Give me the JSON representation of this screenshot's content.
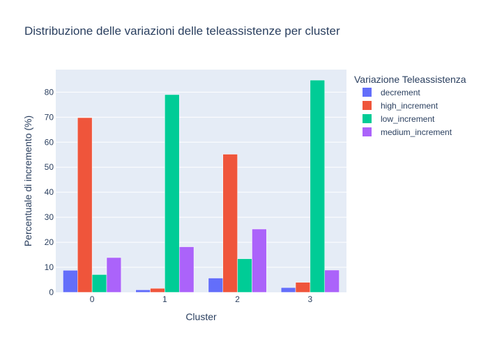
{
  "chart_data": {
    "type": "bar",
    "title": "Distribuzione delle variazioni delle teleassistenze per cluster",
    "xlabel": "Cluster",
    "ylabel": "Percentuale di incremento (%)",
    "categories": [
      "0",
      "1",
      "2",
      "3"
    ],
    "ylim": [
      0,
      89
    ],
    "yticks": [
      0,
      10,
      20,
      30,
      40,
      50,
      60,
      70,
      80
    ],
    "grid": true,
    "legend_title": "Variazione Teleassistenza",
    "legend_position": "right",
    "plot_background": "#e5ecf6",
    "series": [
      {
        "name": "decrement",
        "color": "#636efa",
        "values": [
          8.8,
          1.0,
          5.7,
          1.9
        ]
      },
      {
        "name": "high_increment",
        "color": "#ef553b",
        "values": [
          69.8,
          1.6,
          55.2,
          4.0
        ]
      },
      {
        "name": "low_increment",
        "color": "#00cc96",
        "values": [
          7.1,
          79.0,
          13.4,
          84.8
        ]
      },
      {
        "name": "medium_increment",
        "color": "#ab63fa",
        "values": [
          13.9,
          18.2,
          25.3,
          8.9
        ]
      }
    ]
  }
}
